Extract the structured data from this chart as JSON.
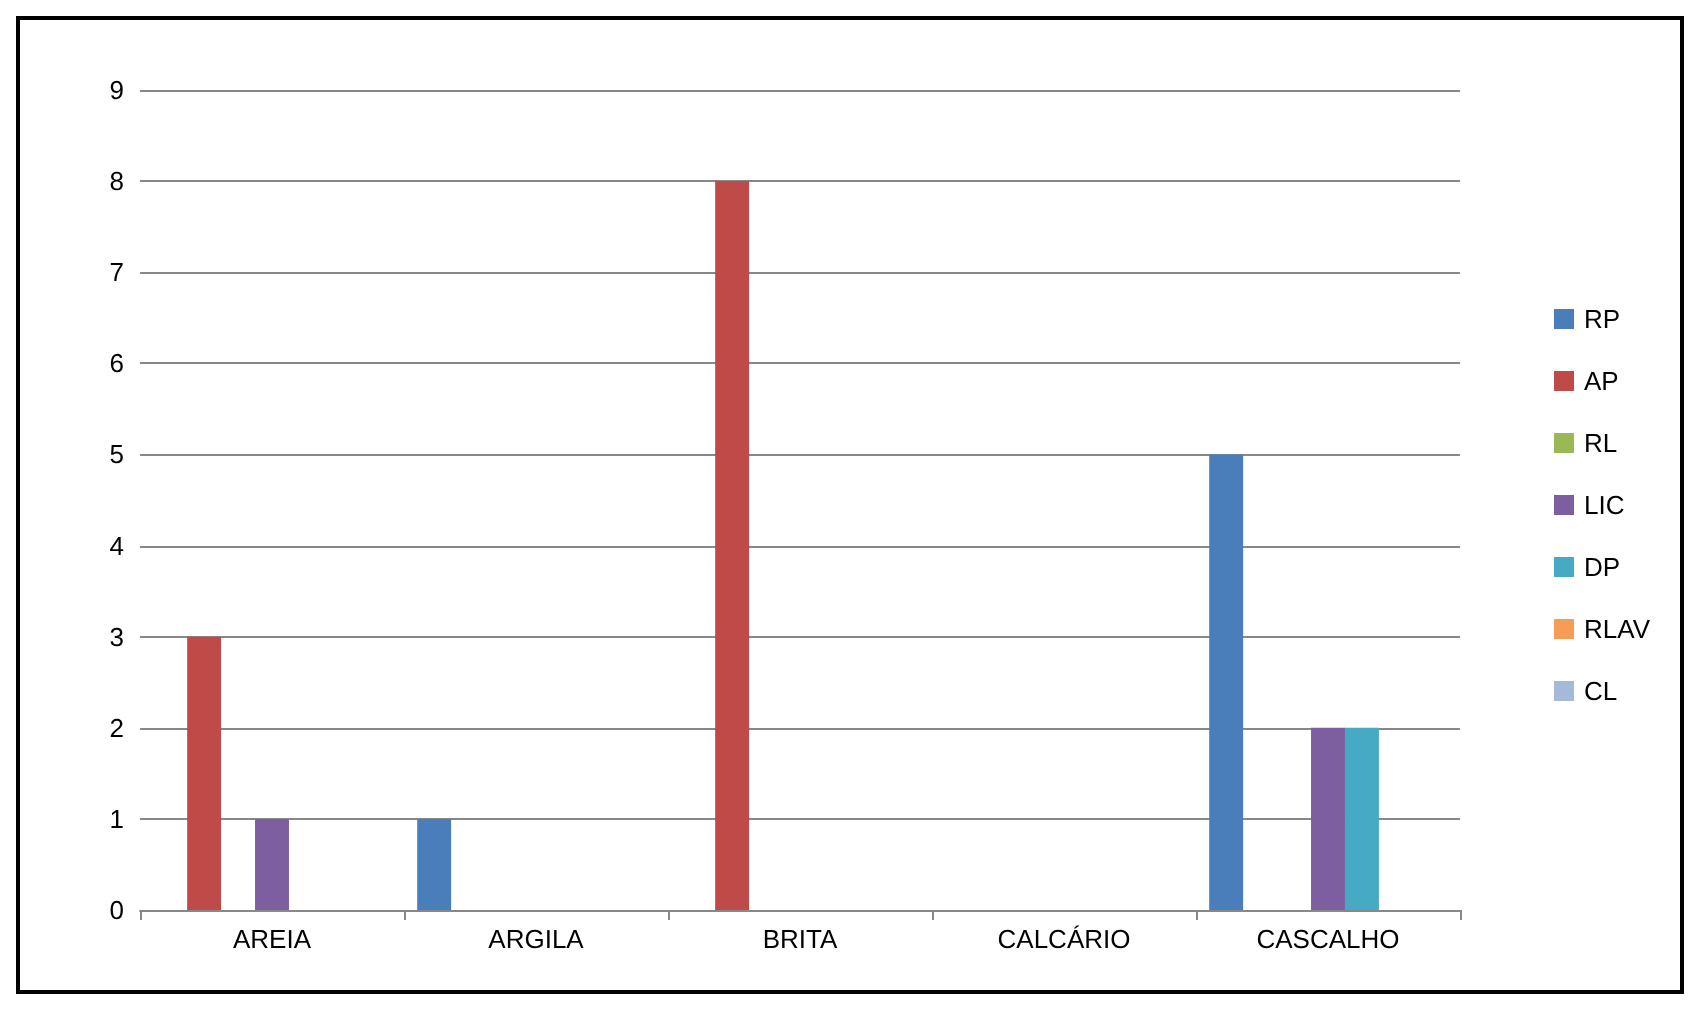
{
  "chart_data": {
    "type": "bar",
    "categories": [
      "AREIA",
      "ARGILA",
      "BRITA",
      "CALCÁRIO",
      "CASCALHO"
    ],
    "series": [
      {
        "name": "RP",
        "color": "#4a7ebb",
        "values": [
          0,
          1,
          0,
          0,
          5
        ]
      },
      {
        "name": "AP",
        "color": "#be4b48",
        "values": [
          3,
          0,
          8,
          0,
          0
        ]
      },
      {
        "name": "RL",
        "color": "#98b954",
        "values": [
          0,
          0,
          0,
          0,
          0
        ]
      },
      {
        "name": "LIC",
        "color": "#7d5fa0",
        "values": [
          1,
          0,
          0,
          0,
          2
        ]
      },
      {
        "name": "DP",
        "color": "#46aac5",
        "values": [
          0,
          0,
          0,
          0,
          2
        ]
      },
      {
        "name": "RLAV",
        "color": "#f59d56",
        "values": [
          0,
          0,
          0,
          0,
          0
        ]
      },
      {
        "name": "CL",
        "color": "#a5b9d8",
        "values": [
          0,
          0,
          0,
          0,
          0
        ]
      }
    ],
    "ylim": [
      0,
      9
    ],
    "yticks": [
      0,
      1,
      2,
      3,
      4,
      5,
      6,
      7,
      8,
      9
    ],
    "grid": "y",
    "legend": "right"
  }
}
